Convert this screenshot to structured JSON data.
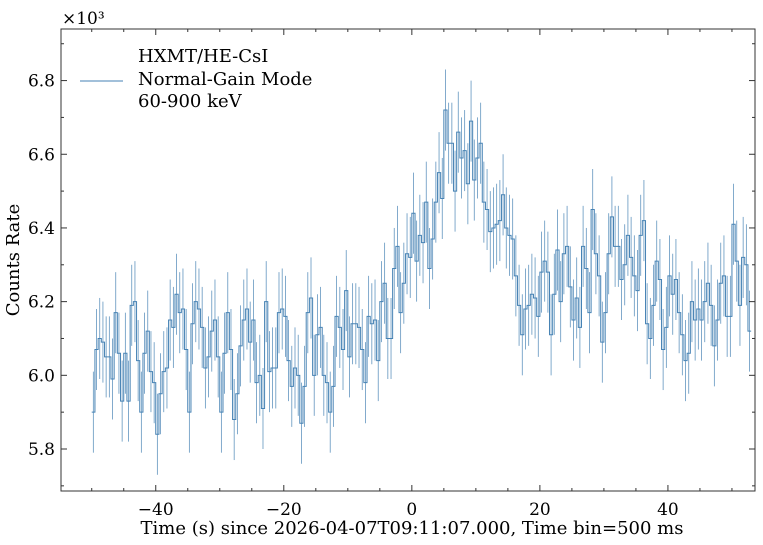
{
  "chart_data": {
    "type": "line",
    "style": "step-with-errorbars",
    "title": "",
    "xlabel": "Time (s) since 2026-04-07T09:11:07.000, Time bin=500 ms",
    "ylabel": "Counts Rate",
    "y_offset_label": "×10³",
    "y_scale": 1000,
    "xlim": [
      -54.8,
      53.6
    ],
    "ylim": [
      5.686,
      6.94
    ],
    "xticks": [
      -40,
      -20,
      0,
      20,
      40
    ],
    "xtick_labels": [
      "−40",
      "−20",
      "0",
      "20",
      "40"
    ],
    "yticks": [
      5.8,
      6.0,
      6.2,
      6.4,
      6.6,
      6.8
    ],
    "ytick_labels": [
      "5.8",
      "6.0",
      "6.2",
      "6.4",
      "6.6",
      "6.8"
    ],
    "grid": false,
    "legend": {
      "placement": "top-left",
      "lines": [
        "HXMT/HE-CsI",
        "Normal-Gain Mode",
        "60-900 keV"
      ]
    },
    "series": [
      {
        "name": "HXMT/HE-CsI Normal-Gain Mode 60-900 keV",
        "color": "#4682b4",
        "x_start": -50.0,
        "bin_width": 0.5,
        "error": 0.11,
        "values": [
          5.9,
          6.07,
          6.1,
          6.09,
          6.05,
          6.05,
          5.99,
          6.17,
          6.06,
          5.93,
          6.06,
          5.93,
          6.19,
          6.2,
          6.04,
          5.9,
          6.06,
          6.12,
          6.01,
          5.98,
          5.84,
          5.95,
          6.01,
          6.02,
          6.15,
          6.13,
          6.22,
          6.17,
          6.18,
          6.07,
          5.9,
          6.14,
          6.2,
          6.18,
          6.13,
          6.02,
          6.05,
          6.12,
          6.15,
          6.05,
          5.9,
          6.06,
          6.17,
          6.07,
          5.88,
          5.95,
          6.08,
          6.15,
          6.18,
          6.09,
          6.15,
          5.98,
          6.0,
          5.91,
          6.2,
          6.01,
          6.02,
          6.02,
          6.17,
          6.18,
          6.16,
          6.04,
          5.97,
          6.02,
          6.0,
          5.87,
          5.97,
          6.17,
          6.21,
          6.0,
          6.11,
          6.13,
          6.0,
          5.98,
          5.9,
          5.97,
          6.16,
          6.13,
          6.07,
          6.23,
          6.05,
          6.14,
          6.14,
          6.13,
          6.07,
          5.98,
          6.16,
          6.14,
          6.15,
          6.04,
          6.2,
          6.25,
          6.1,
          6.1,
          6.29,
          6.35,
          6.17,
          6.25,
          6.33,
          6.32,
          6.44,
          6.31,
          6.38,
          6.36,
          6.47,
          6.29,
          6.37,
          6.47,
          6.55,
          6.48,
          6.72,
          6.63,
          6.63,
          6.5,
          6.66,
          6.59,
          6.61,
          6.52,
          6.69,
          6.53,
          6.59,
          6.63,
          6.47,
          6.45,
          6.39,
          6.4,
          6.41,
          6.42,
          6.49,
          6.4,
          6.38,
          6.37,
          6.27,
          6.19,
          6.11,
          6.18,
          6.19,
          6.22,
          6.21,
          6.16,
          6.28,
          6.31,
          6.28,
          6.11,
          6.22,
          6.34,
          6.2,
          6.33,
          6.35,
          6.24,
          6.15,
          6.21,
          6.13,
          6.35,
          6.29,
          6.17,
          6.45,
          6.33,
          6.27,
          6.09,
          6.17,
          6.33,
          6.43,
          6.35,
          6.35,
          6.26,
          6.3,
          6.38,
          6.32,
          6.27,
          6.23,
          6.38,
          6.42,
          6.14,
          6.1,
          6.19,
          6.31,
          6.26,
          6.07,
          6.13,
          6.27,
          6.22,
          6.26,
          6.17,
          6.11,
          6.04,
          6.06,
          6.2,
          6.15,
          6.18,
          6.15,
          6.2,
          6.25,
          6.19,
          6.08,
          6.15,
          6.25,
          6.27,
          6.16,
          6.16,
          6.41,
          6.31,
          6.19,
          6.32,
          6.3,
          6.12
        ]
      }
    ]
  }
}
